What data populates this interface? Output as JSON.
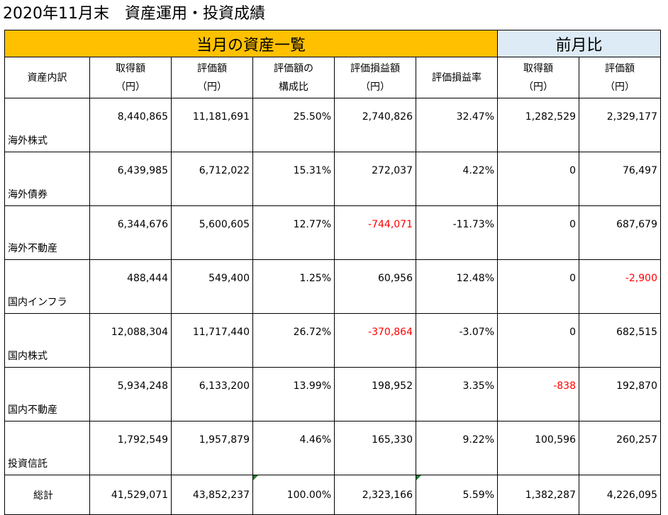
{
  "title": "2020年11月末　資産運用・投資成績",
  "band": {
    "current": "当月の資産一覧",
    "previous": "前月比"
  },
  "headers": {
    "category": "資産内訳",
    "cost": [
      "取得額",
      "（円）"
    ],
    "value": [
      "評価額",
      "（円）"
    ],
    "ratio": [
      "評価額の",
      "構成比"
    ],
    "gain": [
      "評価損益額",
      "（円）"
    ],
    "gain_rate": "評価損益率",
    "prev_cost": [
      "取得額",
      "（円）"
    ],
    "prev_value": [
      "評価額",
      "（円）"
    ]
  },
  "rows": [
    {
      "name": "海外株式",
      "cost": "8,440,865",
      "value": "11,181,691",
      "ratio": "25.50%",
      "gain": "2,740,826",
      "gain_rate": "32.47%",
      "prev_cost": "1,282,529",
      "prev_value": "2,329,177"
    },
    {
      "name": "海外債券",
      "cost": "6,439,985",
      "value": "6,712,022",
      "ratio": "15.31%",
      "gain": "272,037",
      "gain_rate": "4.22%",
      "prev_cost": "0",
      "prev_value": "76,497"
    },
    {
      "name": "海外不動産",
      "cost": "6,344,676",
      "value": "5,600,605",
      "ratio": "12.77%",
      "gain": "-744,071",
      "gain_rate": "-11.73%",
      "prev_cost": "0",
      "prev_value": "687,679"
    },
    {
      "name": "国内インフラ",
      "cost": "488,444",
      "value": "549,400",
      "ratio": "1.25%",
      "gain": "60,956",
      "gain_rate": "12.48%",
      "prev_cost": "0",
      "prev_value": "-2,900"
    },
    {
      "name": "国内株式",
      "cost": "12,088,304",
      "value": "11,717,440",
      "ratio": "26.72%",
      "gain": "-370,864",
      "gain_rate": "-3.07%",
      "prev_cost": "0",
      "prev_value": "682,515"
    },
    {
      "name": "国内不動産",
      "cost": "5,934,248",
      "value": "6,133,200",
      "ratio": "13.99%",
      "gain": "198,952",
      "gain_rate": "3.35%",
      "prev_cost": "-838",
      "prev_value": "192,870"
    },
    {
      "name": "投資信託",
      "cost": "1,792,549",
      "value": "1,957,879",
      "ratio": "4.46%",
      "gain": "165,330",
      "gain_rate": "9.22%",
      "prev_cost": "100,596",
      "prev_value": "260,257"
    }
  ],
  "total": {
    "name": "総計",
    "cost": "41,529,071",
    "value": "43,852,237",
    "ratio": "100.00%",
    "gain": "2,323,166",
    "gain_rate": "5.59%",
    "prev_cost": "1,382,287",
    "prev_value": "4,226,095"
  },
  "colors": {
    "current_band": "#ffc000",
    "previous_band": "#ddebf7",
    "negative": "#ff0000",
    "error_marker": "#1e7b34"
  }
}
